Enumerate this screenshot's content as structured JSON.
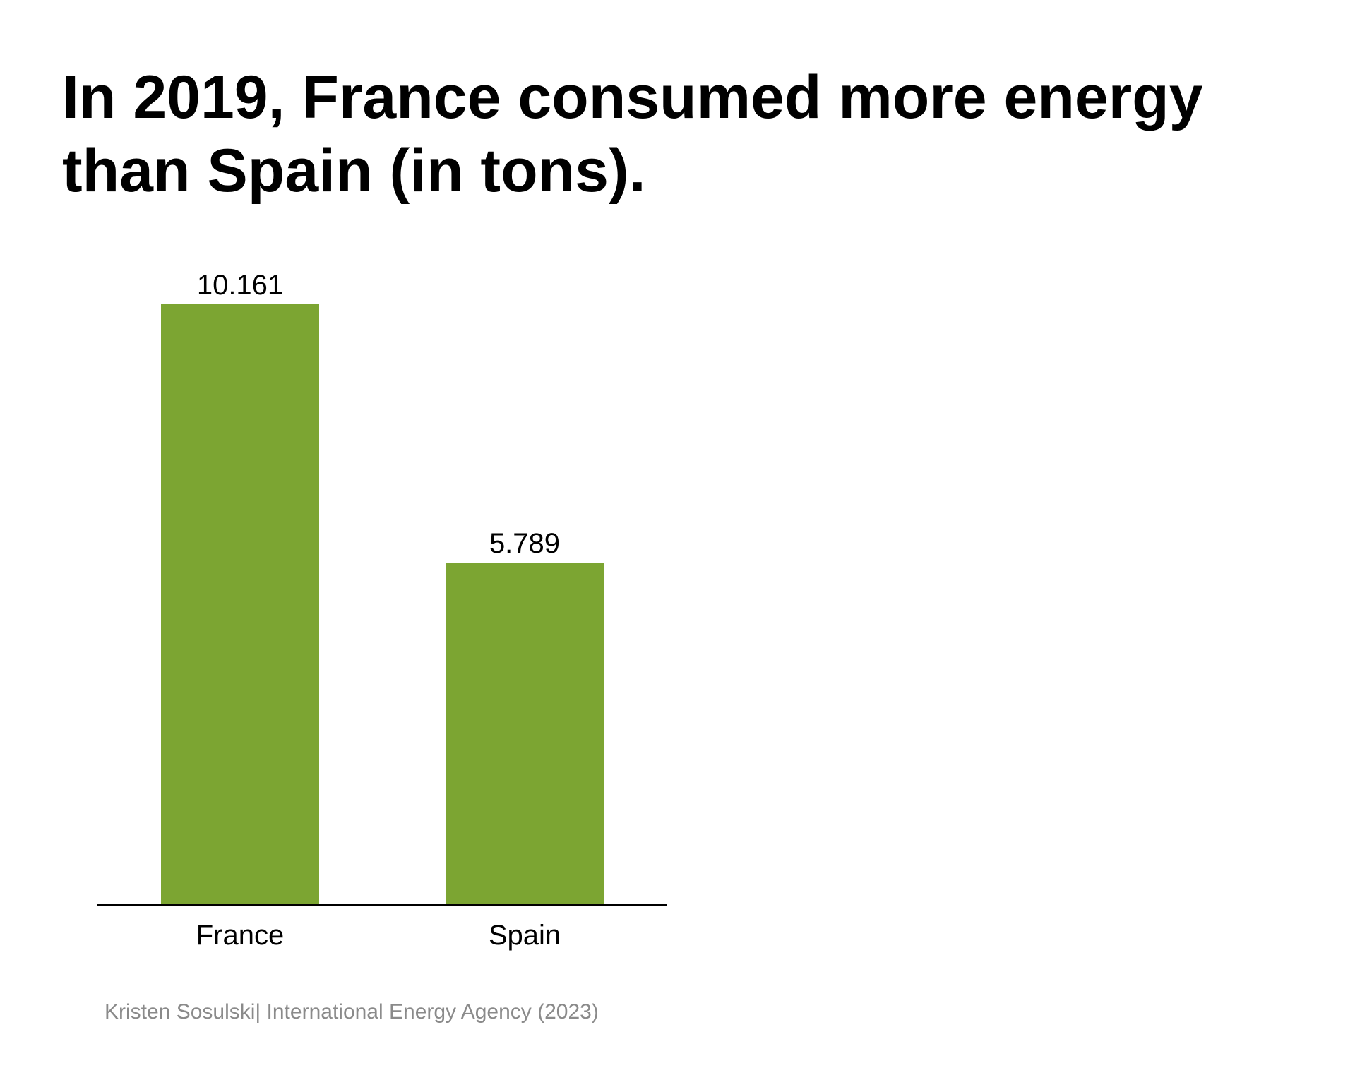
{
  "title": "In 2019, France consumed more energy than Spain (in tons).",
  "source": "Kristen Sosulski| International Energy Agency (2023)",
  "colors": {
    "bar": "#7ca532",
    "axis": "#000000",
    "source_text": "#8a8a8a"
  },
  "chart_data": {
    "type": "bar",
    "title": "In 2019, France consumed more energy than Spain (in tons).",
    "categories": [
      "France",
      "Spain"
    ],
    "values": [
      10.161,
      5.789
    ],
    "value_labels": [
      "10.161",
      "5.789"
    ],
    "xlabel": "",
    "ylabel": "",
    "ylim": [
      0,
      10.161
    ],
    "grid": false,
    "legend": "none"
  }
}
